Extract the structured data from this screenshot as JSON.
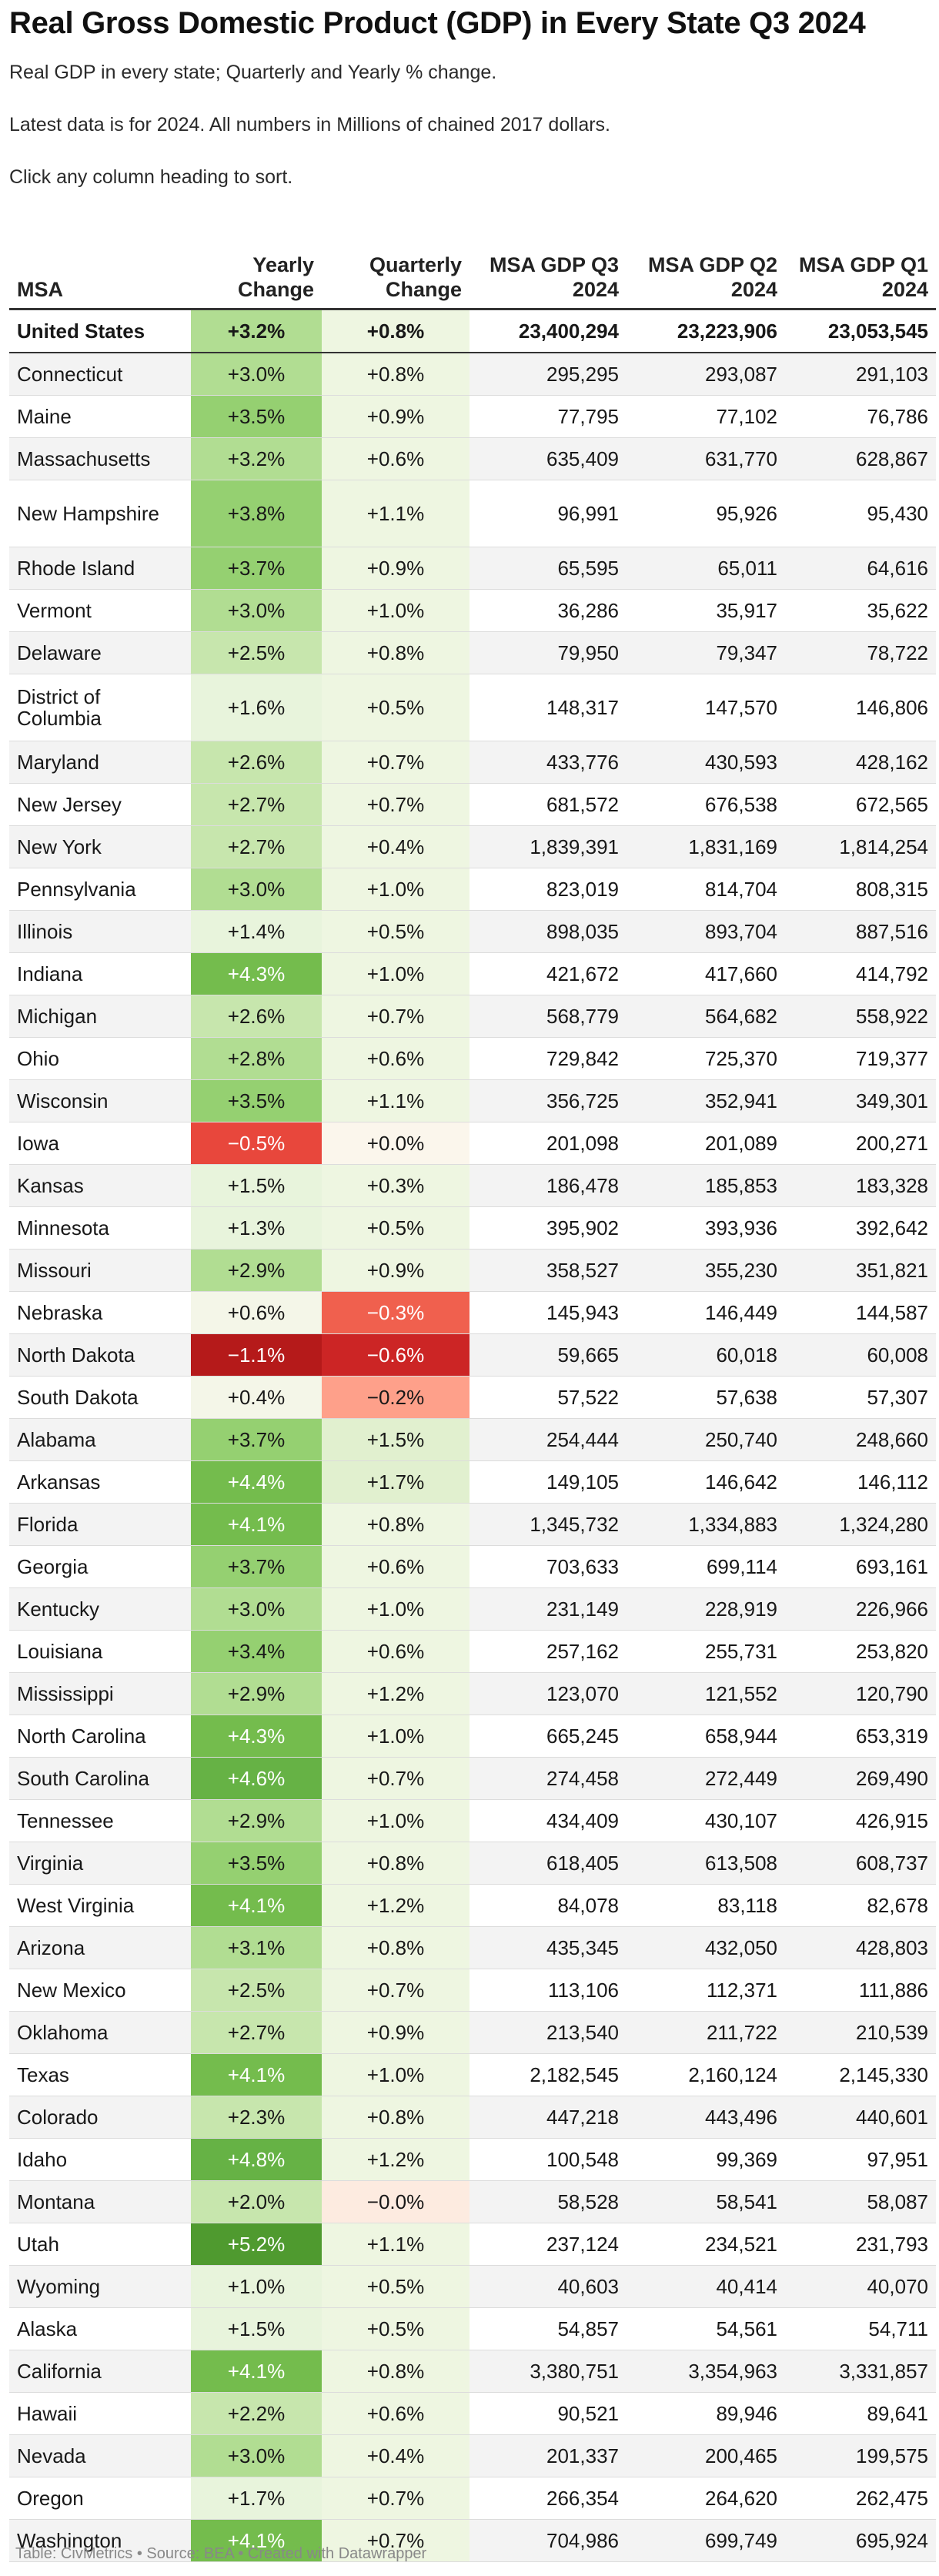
{
  "title": "Real Gross Domestic Product (GDP) in Every State Q3 2024",
  "description": [
    "Real GDP in every state; Quarterly and Yearly % change.",
    "Latest data is for 2024. All numbers in Millions of chained 2017 dollars.",
    "Click any column heading to sort."
  ],
  "columns": {
    "msa": "MSA",
    "yearly": "Yearly Change",
    "quarterly": "Quarterly Change",
    "q3": "MSA GDP Q3 2024",
    "q2": "MSA GDP Q2 2024",
    "q1": "MSA GDP Q1 2024"
  },
  "rows": [
    {
      "name": "United States",
      "yearly": "+3.2%",
      "quarterly": "+0.8%",
      "q3": "23,400,294",
      "q2": "23,223,906",
      "q1": "23,053,545"
    },
    {
      "name": "Connecticut",
      "yearly": "+3.0%",
      "quarterly": "+0.8%",
      "q3": "295,295",
      "q2": "293,087",
      "q1": "291,103"
    },
    {
      "name": "Maine",
      "yearly": "+3.5%",
      "quarterly": "+0.9%",
      "q3": "77,795",
      "q2": "77,102",
      "q1": "76,786"
    },
    {
      "name": "Massachusetts",
      "yearly": "+3.2%",
      "quarterly": "+0.6%",
      "q3": "635,409",
      "q2": "631,770",
      "q1": "628,867"
    },
    {
      "name": "New Hampshire",
      "yearly": "+3.8%",
      "quarterly": "+1.1%",
      "q3": "96,991",
      "q2": "95,926",
      "q1": "95,430"
    },
    {
      "name": "Rhode Island",
      "yearly": "+3.7%",
      "quarterly": "+0.9%",
      "q3": "65,595",
      "q2": "65,011",
      "q1": "64,616"
    },
    {
      "name": "Vermont",
      "yearly": "+3.0%",
      "quarterly": "+1.0%",
      "q3": "36,286",
      "q2": "35,917",
      "q1": "35,622"
    },
    {
      "name": "Delaware",
      "yearly": "+2.5%",
      "quarterly": "+0.8%",
      "q3": "79,950",
      "q2": "79,347",
      "q1": "78,722"
    },
    {
      "name": "District of Columbia",
      "yearly": "+1.6%",
      "quarterly": "+0.5%",
      "q3": "148,317",
      "q2": "147,570",
      "q1": "146,806"
    },
    {
      "name": "Maryland",
      "yearly": "+2.6%",
      "quarterly": "+0.7%",
      "q3": "433,776",
      "q2": "430,593",
      "q1": "428,162"
    },
    {
      "name": "New Jersey",
      "yearly": "+2.7%",
      "quarterly": "+0.7%",
      "q3": "681,572",
      "q2": "676,538",
      "q1": "672,565"
    },
    {
      "name": "New York",
      "yearly": "+2.7%",
      "quarterly": "+0.4%",
      "q3": "1,839,391",
      "q2": "1,831,169",
      "q1": "1,814,254"
    },
    {
      "name": "Pennsylvania",
      "yearly": "+3.0%",
      "quarterly": "+1.0%",
      "q3": "823,019",
      "q2": "814,704",
      "q1": "808,315"
    },
    {
      "name": "Illinois",
      "yearly": "+1.4%",
      "quarterly": "+0.5%",
      "q3": "898,035",
      "q2": "893,704",
      "q1": "887,516"
    },
    {
      "name": "Indiana",
      "yearly": "+4.3%",
      "quarterly": "+1.0%",
      "q3": "421,672",
      "q2": "417,660",
      "q1": "414,792"
    },
    {
      "name": "Michigan",
      "yearly": "+2.6%",
      "quarterly": "+0.7%",
      "q3": "568,779",
      "q2": "564,682",
      "q1": "558,922"
    },
    {
      "name": "Ohio",
      "yearly": "+2.8%",
      "quarterly": "+0.6%",
      "q3": "729,842",
      "q2": "725,370",
      "q1": "719,377"
    },
    {
      "name": "Wisconsin",
      "yearly": "+3.5%",
      "quarterly": "+1.1%",
      "q3": "356,725",
      "q2": "352,941",
      "q1": "349,301"
    },
    {
      "name": "Iowa",
      "yearly": "−0.5%",
      "quarterly": "+0.0%",
      "q3": "201,098",
      "q2": "201,089",
      "q1": "200,271"
    },
    {
      "name": "Kansas",
      "yearly": "+1.5%",
      "quarterly": "+0.3%",
      "q3": "186,478",
      "q2": "185,853",
      "q1": "183,328"
    },
    {
      "name": "Minnesota",
      "yearly": "+1.3%",
      "quarterly": "+0.5%",
      "q3": "395,902",
      "q2": "393,936",
      "q1": "392,642"
    },
    {
      "name": "Missouri",
      "yearly": "+2.9%",
      "quarterly": "+0.9%",
      "q3": "358,527",
      "q2": "355,230",
      "q1": "351,821"
    },
    {
      "name": "Nebraska",
      "yearly": "+0.6%",
      "quarterly": "−0.3%",
      "q3": "145,943",
      "q2": "146,449",
      "q1": "144,587"
    },
    {
      "name": "North Dakota",
      "yearly": "−1.1%",
      "quarterly": "−0.6%",
      "q3": "59,665",
      "q2": "60,018",
      "q1": "60,008"
    },
    {
      "name": "South Dakota",
      "yearly": "+0.4%",
      "quarterly": "−0.2%",
      "q3": "57,522",
      "q2": "57,638",
      "q1": "57,307"
    },
    {
      "name": "Alabama",
      "yearly": "+3.7%",
      "quarterly": "+1.5%",
      "q3": "254,444",
      "q2": "250,740",
      "q1": "248,660"
    },
    {
      "name": "Arkansas",
      "yearly": "+4.4%",
      "quarterly": "+1.7%",
      "q3": "149,105",
      "q2": "146,642",
      "q1": "146,112"
    },
    {
      "name": "Florida",
      "yearly": "+4.1%",
      "quarterly": "+0.8%",
      "q3": "1,345,732",
      "q2": "1,334,883",
      "q1": "1,324,280"
    },
    {
      "name": "Georgia",
      "yearly": "+3.7%",
      "quarterly": "+0.6%",
      "q3": "703,633",
      "q2": "699,114",
      "q1": "693,161"
    },
    {
      "name": "Kentucky",
      "yearly": "+3.0%",
      "quarterly": "+1.0%",
      "q3": "231,149",
      "q2": "228,919",
      "q1": "226,966"
    },
    {
      "name": "Louisiana",
      "yearly": "+3.4%",
      "quarterly": "+0.6%",
      "q3": "257,162",
      "q2": "255,731",
      "q1": "253,820"
    },
    {
      "name": "Mississippi",
      "yearly": "+2.9%",
      "quarterly": "+1.2%",
      "q3": "123,070",
      "q2": "121,552",
      "q1": "120,790"
    },
    {
      "name": "North Carolina",
      "yearly": "+4.3%",
      "quarterly": "+1.0%",
      "q3": "665,245",
      "q2": "658,944",
      "q1": "653,319"
    },
    {
      "name": "South Carolina",
      "yearly": "+4.6%",
      "quarterly": "+0.7%",
      "q3": "274,458",
      "q2": "272,449",
      "q1": "269,490"
    },
    {
      "name": "Tennessee",
      "yearly": "+2.9%",
      "quarterly": "+1.0%",
      "q3": "434,409",
      "q2": "430,107",
      "q1": "426,915"
    },
    {
      "name": "Virginia",
      "yearly": "+3.5%",
      "quarterly": "+0.8%",
      "q3": "618,405",
      "q2": "613,508",
      "q1": "608,737"
    },
    {
      "name": "West Virginia",
      "yearly": "+4.1%",
      "quarterly": "+1.2%",
      "q3": "84,078",
      "q2": "83,118",
      "q1": "82,678"
    },
    {
      "name": "Arizona",
      "yearly": "+3.1%",
      "quarterly": "+0.8%",
      "q3": "435,345",
      "q2": "432,050",
      "q1": "428,803"
    },
    {
      "name": "New Mexico",
      "yearly": "+2.5%",
      "quarterly": "+0.7%",
      "q3": "113,106",
      "q2": "112,371",
      "q1": "111,886"
    },
    {
      "name": "Oklahoma",
      "yearly": "+2.7%",
      "quarterly": "+0.9%",
      "q3": "213,540",
      "q2": "211,722",
      "q1": "210,539"
    },
    {
      "name": "Texas",
      "yearly": "+4.1%",
      "quarterly": "+1.0%",
      "q3": "2,182,545",
      "q2": "2,160,124",
      "q1": "2,145,330"
    },
    {
      "name": "Colorado",
      "yearly": "+2.3%",
      "quarterly": "+0.8%",
      "q3": "447,218",
      "q2": "443,496",
      "q1": "440,601"
    },
    {
      "name": "Idaho",
      "yearly": "+4.8%",
      "quarterly": "+1.2%",
      "q3": "100,548",
      "q2": "99,369",
      "q1": "97,951"
    },
    {
      "name": "Montana",
      "yearly": "+2.0%",
      "quarterly": "−0.0%",
      "q3": "58,528",
      "q2": "58,541",
      "q1": "58,087"
    },
    {
      "name": "Utah",
      "yearly": "+5.2%",
      "quarterly": "+1.1%",
      "q3": "237,124",
      "q2": "234,521",
      "q1": "231,793"
    },
    {
      "name": "Wyoming",
      "yearly": "+1.0%",
      "quarterly": "+0.5%",
      "q3": "40,603",
      "q2": "40,414",
      "q1": "40,070"
    },
    {
      "name": "Alaska",
      "yearly": "+1.5%",
      "quarterly": "+0.5%",
      "q3": "54,857",
      "q2": "54,561",
      "q1": "54,711"
    },
    {
      "name": "California",
      "yearly": "+4.1%",
      "quarterly": "+0.8%",
      "q3": "3,380,751",
      "q2": "3,354,963",
      "q1": "3,331,857"
    },
    {
      "name": "Hawaii",
      "yearly": "+2.2%",
      "quarterly": "+0.6%",
      "q3": "90,521",
      "q2": "89,946",
      "q1": "89,641"
    },
    {
      "name": "Nevada",
      "yearly": "+3.0%",
      "quarterly": "+0.4%",
      "q3": "201,337",
      "q2": "200,465",
      "q1": "199,575"
    },
    {
      "name": "Oregon",
      "yearly": "+1.7%",
      "quarterly": "+0.7%",
      "q3": "266,354",
      "q2": "264,620",
      "q1": "262,475"
    },
    {
      "name": "Washington",
      "yearly": "+4.1%",
      "quarterly": "+0.7%",
      "q3": "704,986",
      "q2": "699,749",
      "q1": "695,924"
    }
  ],
  "footer": "Table: CivMetrics • Source: BEA • Created with Datawrapper"
}
